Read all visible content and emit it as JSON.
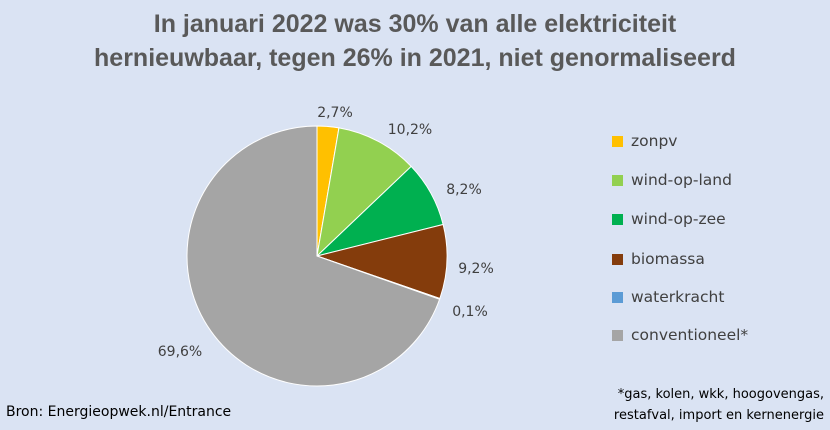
{
  "chart_data": {
    "type": "pie",
    "title_lines": [
      "In januari 2022 was 30% van alle elektriciteit",
      "hernieuwbaar, tegen 26% in 2021, niet genormaliseerd"
    ],
    "categories": [
      "zonpv",
      "wind-op-land",
      "wind-op-zee",
      "biomassa",
      "waterkracht",
      "conventioneel*"
    ],
    "values": [
      2.7,
      10.2,
      8.2,
      9.2,
      0.1,
      69.6
    ],
    "data_labels": [
      "2,7%",
      "10,2%",
      "8,2%",
      "9,2%",
      "0,1%",
      "69,6%"
    ],
    "colors": [
      "#ffc000",
      "#92d050",
      "#00b050",
      "#843c0c",
      "#5b9bd5",
      "#a5a5a5"
    ],
    "legend_position": "right"
  },
  "source_text": "Bron: Energieopwek.nl/Entrance",
  "footnote_lines": [
    "*gas, kolen, wkk, hoogovengas,",
    "restafval, import en kernenergie"
  ]
}
